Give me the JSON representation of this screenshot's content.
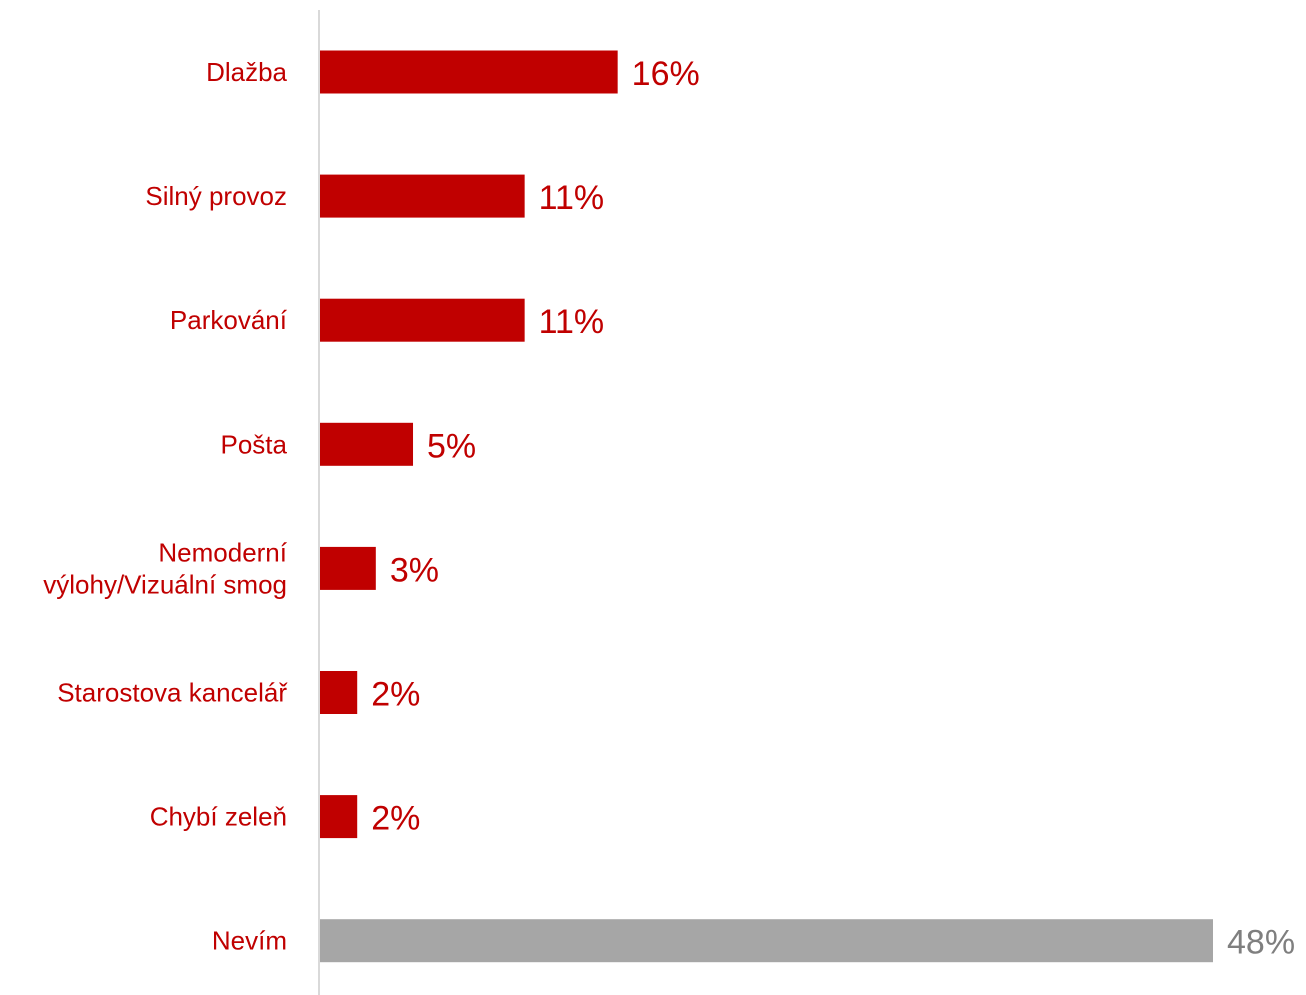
{
  "chart_data": {
    "type": "bar",
    "orientation": "horizontal",
    "categories": [
      [
        "Dlažba"
      ],
      [
        "Silný provoz"
      ],
      [
        "Parkování"
      ],
      [
        "Pošta"
      ],
      [
        "Nemoderní",
        "výlohy/Vizuální smog"
      ],
      [
        "Starostova kancelář"
      ],
      [
        "Chybí zeleň"
      ],
      [
        "Nevím"
      ]
    ],
    "values": [
      16,
      11,
      11,
      5,
      3,
      2,
      2,
      48
    ],
    "value_labels": [
      "16%",
      "11%",
      "11%",
      "5%",
      "3%",
      "2%",
      "2%",
      "48%"
    ],
    "unit": "%",
    "xlim": [
      0,
      48
    ],
    "grid": false,
    "legend": "none",
    "colors": {
      "bar": "#c00000",
      "highlight_bar": "#a6a6a6",
      "label": "#c00000",
      "highlight_label": "#a6a6a6",
      "value_label": "#c00000",
      "highlight_value_label": "#7f7f7f",
      "axis": "#d9d9d9"
    },
    "highlight_index": 7
  }
}
